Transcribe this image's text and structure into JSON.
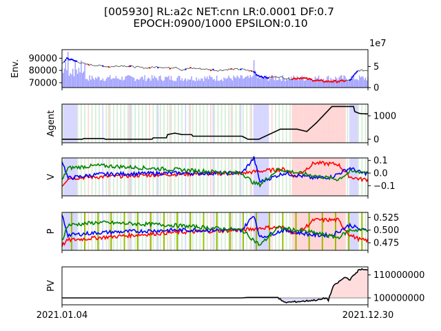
{
  "title_line1": "[005930] RL:a2c NET:cnn LR:0.0001 DF:0.7",
  "title_line2": "EPOCH:0900/1000 EPSILON:0.10",
  "colors": {
    "buy": "#ff0000",
    "sell": "#0000ff",
    "hold": "#008000",
    "volume": "#9999ff",
    "agent": "#000000",
    "pv": "#000000",
    "bg_buy": "#ffcccc",
    "bg_sell": "#ccccff",
    "bg_hold": "#cce8cc",
    "exploration": "#99bb00"
  },
  "chart_data": [
    {
      "type": "line",
      "name": "env",
      "ylabel": "Env.",
      "yticks": [
        "70000",
        "80000",
        "90000"
      ],
      "ylim": [
        66000,
        97000
      ],
      "y2_ticks": [
        "0",
        "5"
      ],
      "y2_offset": "1e7",
      "y2lim": [
        0,
        9
      ],
      "close_knots": [
        [
          0,
          85000
        ],
        [
          4,
          90000
        ],
        [
          10,
          88000
        ],
        [
          20,
          85000
        ],
        [
          30,
          84000
        ],
        [
          40,
          83000
        ],
        [
          50,
          84000
        ],
        [
          60,
          83000
        ],
        [
          70,
          82000
        ],
        [
          80,
          83000
        ],
        [
          90,
          82000
        ],
        [
          95,
          83000
        ],
        [
          100,
          80000
        ],
        [
          107,
          82000
        ],
        [
          120,
          81000
        ],
        [
          130,
          80000
        ],
        [
          140,
          81000
        ],
        [
          150,
          81000
        ],
        [
          160,
          79000
        ],
        [
          163,
          76000
        ],
        [
          170,
          74000
        ],
        [
          180,
          75000
        ],
        [
          190,
          73000
        ],
        [
          200,
          74000
        ],
        [
          210,
          72000
        ],
        [
          220,
          71000
        ],
        [
          230,
          71000
        ],
        [
          240,
          72000
        ],
        [
          247,
          80000
        ]
      ],
      "volume_scale_note": "volume shown as bars on secondary axis"
    },
    {
      "type": "line",
      "name": "agent",
      "ylabel": "Agent",
      "yticks": [
        "0",
        "1000"
      ],
      "ylim": [
        -150,
        1500
      ],
      "knots": [
        [
          0,
          0
        ],
        [
          17,
          0
        ],
        [
          18,
          30
        ],
        [
          35,
          30
        ],
        [
          36,
          0
        ],
        [
          75,
          0
        ],
        [
          76,
          60
        ],
        [
          87,
          60
        ],
        [
          88,
          200
        ],
        [
          94,
          260
        ],
        [
          100,
          200
        ],
        [
          108,
          200
        ],
        [
          109,
          130
        ],
        [
          150,
          130
        ],
        [
          155,
          0
        ],
        [
          156,
          0
        ],
        [
          164,
          0
        ],
        [
          182,
          430
        ],
        [
          196,
          430
        ],
        [
          204,
          330
        ],
        [
          212,
          700
        ],
        [
          225,
          1400
        ],
        [
          243,
          1400
        ],
        [
          244,
          1180
        ],
        [
          248,
          1100
        ],
        [
          255,
          1080
        ]
      ]
    },
    {
      "type": "line",
      "name": "V",
      "ylabel": "V",
      "yticks": [
        "0.1",
        "0.0",
        "−0.1"
      ],
      "ylim": [
        -0.18,
        0.12
      ],
      "series": [
        {
          "key": "buy",
          "knots": [
            [
              0,
              -0.1
            ],
            [
              5,
              -0.04
            ],
            [
              30,
              -0.03
            ],
            [
              90,
              -0.01
            ],
            [
              150,
              0.0
            ],
            [
              170,
              0.02
            ],
            [
              185,
              0.03
            ],
            [
              195,
              -0.03
            ],
            [
              210,
              0.08
            ],
            [
              230,
              0.07
            ],
            [
              240,
              -0.03
            ],
            [
              250,
              -0.05
            ]
          ]
        },
        {
          "key": "sell",
          "knots": [
            [
              0,
              0.1
            ],
            [
              5,
              -0.04
            ],
            [
              30,
              -0.01
            ],
            [
              90,
              0.0
            ],
            [
              150,
              0.0
            ],
            [
              160,
              0.12
            ],
            [
              165,
              -0.07
            ],
            [
              185,
              0.0
            ],
            [
              210,
              -0.04
            ],
            [
              225,
              -0.03
            ],
            [
              240,
              0.04
            ],
            [
              250,
              0.0
            ]
          ]
        },
        {
          "key": "hold",
          "knots": [
            [
              0,
              -0.06
            ],
            [
              5,
              0.04
            ],
            [
              30,
              0.06
            ],
            [
              90,
              0.03
            ],
            [
              150,
              0.0
            ],
            [
              160,
              -0.08
            ],
            [
              165,
              -0.09
            ],
            [
              180,
              0.03
            ],
            [
              210,
              -0.02
            ],
            [
              230,
              -0.05
            ],
            [
              240,
              0.01
            ],
            [
              250,
              0.01
            ]
          ]
        }
      ]
    },
    {
      "type": "line",
      "name": "P",
      "ylabel": "P",
      "yticks": [
        "0.525",
        "0.500",
        "0.475"
      ],
      "ylim": [
        0.46,
        0.535
      ],
      "series": [
        {
          "key": "buy",
          "knots": [
            [
              0,
              0.47
            ],
            [
              5,
              0.48
            ],
            [
              30,
              0.485
            ],
            [
              90,
              0.495
            ],
            [
              150,
              0.5
            ],
            [
              170,
              0.505
            ],
            [
              185,
              0.505
            ],
            [
              195,
              0.49
            ],
            [
              210,
              0.52
            ],
            [
              230,
              0.52
            ],
            [
              240,
              0.49
            ],
            [
              250,
              0.48
            ]
          ]
        },
        {
          "key": "sell",
          "knots": [
            [
              0,
              0.53
            ],
            [
              5,
              0.49
            ],
            [
              30,
              0.495
            ],
            [
              90,
              0.5
            ],
            [
              150,
              0.5
            ],
            [
              160,
              0.53
            ],
            [
              165,
              0.485
            ],
            [
              185,
              0.5
            ],
            [
              210,
              0.49
            ],
            [
              225,
              0.49
            ],
            [
              240,
              0.51
            ],
            [
              250,
              0.5
            ]
          ]
        },
        {
          "key": "hold",
          "knots": [
            [
              0,
              0.48
            ],
            [
              5,
              0.51
            ],
            [
              30,
              0.515
            ],
            [
              90,
              0.51
            ],
            [
              150,
              0.5
            ],
            [
              160,
              0.48
            ],
            [
              165,
              0.47
            ],
            [
              180,
              0.505
            ],
            [
              210,
              0.495
            ],
            [
              230,
              0.485
            ],
            [
              240,
              0.5
            ],
            [
              250,
              0.5
            ]
          ]
        }
      ]
    },
    {
      "type": "line",
      "name": "PV",
      "ylabel": "PV",
      "yticks": [
        "110000000",
        "100000000"
      ],
      "ylim": [
        97000000,
        113500000
      ],
      "baseline": 100000000,
      "knots": [
        [
          0,
          100000000
        ],
        [
          150,
          100000000
        ],
        [
          155,
          100200000
        ],
        [
          180,
          100200000
        ],
        [
          185,
          98000000
        ],
        [
          200,
          98500000
        ],
        [
          210,
          99000000
        ],
        [
          215,
          99200000
        ],
        [
          220,
          100000000
        ],
        [
          222,
          99000000
        ],
        [
          226,
          105000000
        ],
        [
          232,
          107500000
        ],
        [
          236,
          109000000
        ],
        [
          240,
          108000000
        ],
        [
          248,
          112500000
        ],
        [
          255,
          112000000
        ]
      ]
    }
  ],
  "xlabels": [
    "2021.01.04",
    "2021.12.30"
  ]
}
